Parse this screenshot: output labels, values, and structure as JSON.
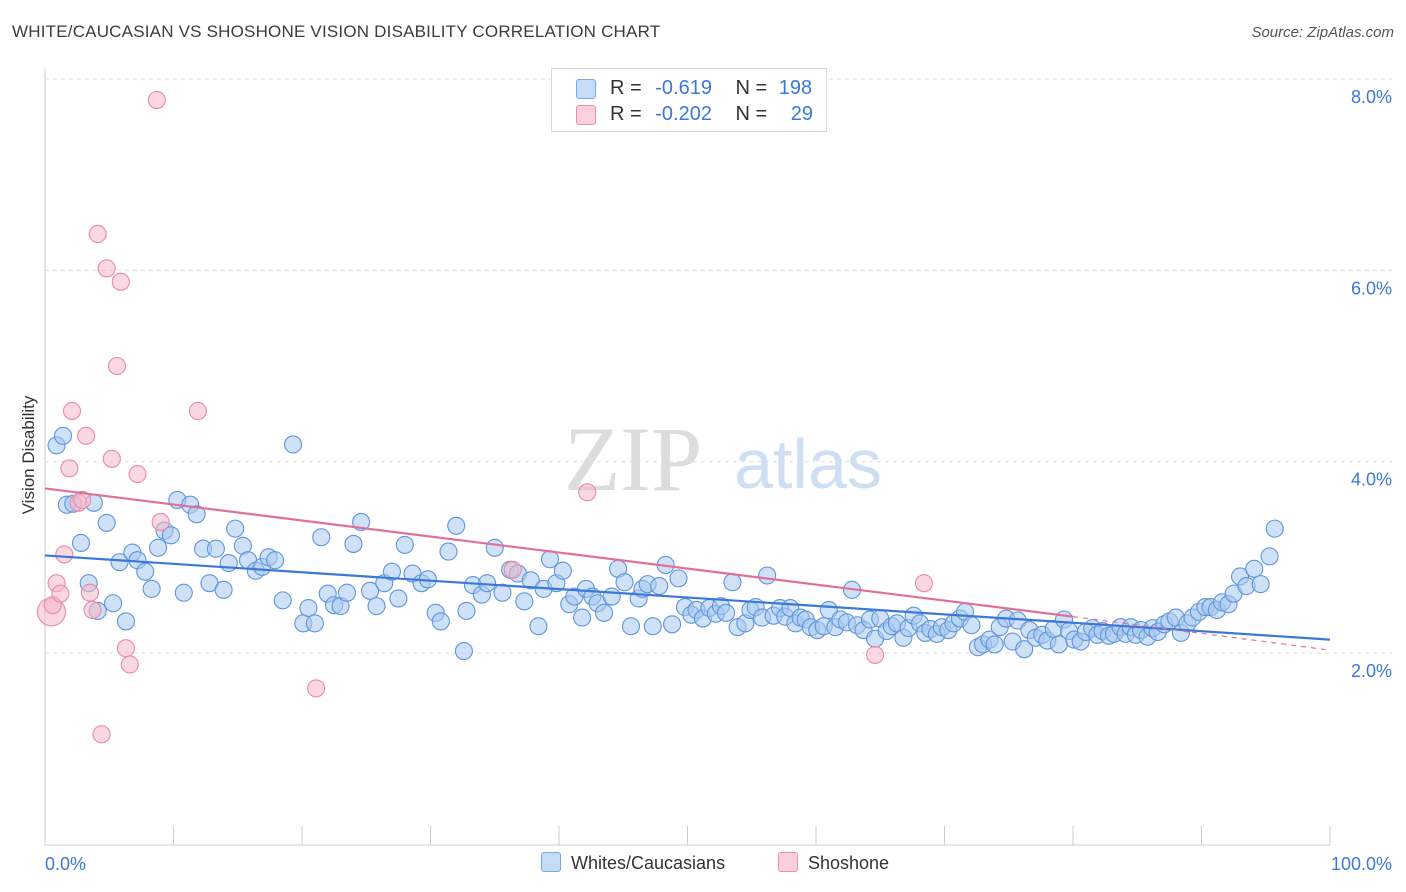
{
  "title": "WHITE/CAUCASIAN VS SHOSHONE VISION DISABILITY CORRELATION CHART",
  "source": "Source: ZipAtlas.com",
  "watermark": {
    "zip": "ZIP",
    "atlas": "atlas"
  },
  "legend_top": {
    "rows": [
      {
        "r_label": "R =",
        "r_value": "-0.619",
        "n_label": "N =",
        "n_value": "198",
        "color": "#a8c8f0"
      },
      {
        "r_label": "R =",
        "r_value": "-0.202",
        "n_label": "N =",
        "n_value": "29",
        "color": "#f5b8c8"
      }
    ]
  },
  "legend_bottom": [
    {
      "label": "Whites/Caucasians",
      "color": "#a8c8f0"
    },
    {
      "label": "Shoshone",
      "color": "#f5b8c8"
    }
  ],
  "chart_data": {
    "type": "scatter",
    "title": "WHITE/CAUCASIAN VS SHOSHONE VISION DISABILITY CORRELATION CHART",
    "xlabel": "",
    "ylabel": "Vision Disability",
    "xlim": [
      0,
      100
    ],
    "ylim": [
      0,
      8.2
    ],
    "x_tick_labels": [
      "0.0%",
      "100.0%"
    ],
    "y_ticks": [
      2,
      4,
      6,
      8
    ],
    "y_tick_labels": [
      "2.0%",
      "4.0%",
      "6.0%",
      "8.0%"
    ],
    "grid": true,
    "legend_position": "bottom",
    "colors": {
      "white": "#3b78d8",
      "white_fill": "#a8c8f0",
      "shoshone": "#e07098",
      "shoshone_fill": "#f5b8c8",
      "tick_label": "#3b78d8"
    },
    "series": [
      {
        "name": "Whites/Caucasians",
        "r": -0.619,
        "n": 198,
        "trend": {
          "x": [
            0,
            100
          ],
          "y": [
            3.02,
            2.14
          ]
        },
        "points": [
          [
            0.9,
            4.17
          ],
          [
            1.4,
            4.27
          ],
          [
            1.7,
            3.55
          ],
          [
            2.2,
            3.56
          ],
          [
            2.8,
            3.15
          ],
          [
            3.4,
            2.73
          ],
          [
            3.8,
            3.57
          ],
          [
            4.1,
            2.44
          ],
          [
            4.8,
            3.36
          ],
          [
            5.3,
            2.52
          ],
          [
            5.8,
            2.95
          ],
          [
            6.3,
            2.33
          ],
          [
            6.8,
            3.05
          ],
          [
            7.2,
            2.97
          ],
          [
            7.8,
            2.85
          ],
          [
            8.3,
            2.67
          ],
          [
            8.8,
            3.1
          ],
          [
            9.3,
            3.28
          ],
          [
            9.8,
            3.23
          ],
          [
            10.3,
            3.6
          ],
          [
            10.8,
            2.63
          ],
          [
            11.3,
            3.55
          ],
          [
            11.8,
            3.45
          ],
          [
            12.3,
            3.09
          ],
          [
            12.8,
            2.73
          ],
          [
            13.3,
            3.09
          ],
          [
            13.9,
            2.66
          ],
          [
            14.3,
            2.94
          ],
          [
            14.8,
            3.3
          ],
          [
            15.4,
            3.12
          ],
          [
            15.8,
            2.97
          ],
          [
            16.4,
            2.86
          ],
          [
            16.9,
            2.9
          ],
          [
            17.4,
            3.0
          ],
          [
            17.9,
            2.97
          ],
          [
            18.5,
            2.55
          ],
          [
            19.3,
            4.18
          ],
          [
            20.1,
            2.31
          ],
          [
            20.5,
            2.47
          ],
          [
            21.0,
            2.31
          ],
          [
            21.5,
            3.21
          ],
          [
            22.0,
            2.62
          ],
          [
            22.5,
            2.5
          ],
          [
            23.0,
            2.49
          ],
          [
            23.5,
            2.63
          ],
          [
            24.0,
            3.14
          ],
          [
            24.6,
            3.37
          ],
          [
            25.3,
            2.65
          ],
          [
            25.8,
            2.49
          ],
          [
            26.4,
            2.73
          ],
          [
            27.0,
            2.85
          ],
          [
            27.5,
            2.57
          ],
          [
            28.0,
            3.13
          ],
          [
            28.6,
            2.83
          ],
          [
            29.3,
            2.73
          ],
          [
            29.8,
            2.77
          ],
          [
            30.4,
            2.42
          ],
          [
            30.8,
            2.33
          ],
          [
            31.4,
            3.06
          ],
          [
            32.0,
            3.33
          ],
          [
            32.6,
            2.02
          ],
          [
            32.8,
            2.44
          ],
          [
            33.3,
            2.71
          ],
          [
            34.0,
            2.61
          ],
          [
            34.4,
            2.73
          ],
          [
            35.0,
            3.1
          ],
          [
            35.6,
            2.63
          ],
          [
            36.2,
            2.87
          ],
          [
            36.8,
            2.83
          ],
          [
            37.3,
            2.54
          ],
          [
            37.8,
            2.76
          ],
          [
            38.4,
            2.28
          ],
          [
            38.8,
            2.67
          ],
          [
            39.3,
            2.98
          ],
          [
            39.8,
            2.73
          ],
          [
            40.3,
            2.86
          ],
          [
            40.8,
            2.51
          ],
          [
            41.2,
            2.59
          ],
          [
            41.8,
            2.37
          ],
          [
            42.1,
            2.67
          ],
          [
            42.6,
            2.59
          ],
          [
            43.0,
            2.52
          ],
          [
            43.5,
            2.42
          ],
          [
            44.1,
            2.59
          ],
          [
            44.6,
            2.88
          ],
          [
            45.1,
            2.74
          ],
          [
            45.6,
            2.28
          ],
          [
            46.2,
            2.57
          ],
          [
            46.5,
            2.67
          ],
          [
            46.9,
            2.72
          ],
          [
            47.3,
            2.28
          ],
          [
            47.8,
            2.7
          ],
          [
            48.3,
            2.92
          ],
          [
            48.8,
            2.3
          ],
          [
            49.3,
            2.78
          ],
          [
            49.8,
            2.48
          ],
          [
            50.3,
            2.4
          ],
          [
            50.7,
            2.45
          ],
          [
            51.2,
            2.36
          ],
          [
            51.7,
            2.47
          ],
          [
            52.2,
            2.41
          ],
          [
            52.6,
            2.49
          ],
          [
            53.0,
            2.42
          ],
          [
            53.5,
            2.74
          ],
          [
            53.9,
            2.27
          ],
          [
            54.5,
            2.31
          ],
          [
            54.9,
            2.45
          ],
          [
            55.3,
            2.48
          ],
          [
            55.8,
            2.37
          ],
          [
            56.2,
            2.81
          ],
          [
            56.7,
            2.39
          ],
          [
            57.2,
            2.47
          ],
          [
            57.6,
            2.38
          ],
          [
            58.0,
            2.47
          ],
          [
            58.4,
            2.31
          ],
          [
            58.8,
            2.37
          ],
          [
            59.2,
            2.35
          ],
          [
            59.6,
            2.27
          ],
          [
            60.1,
            2.24
          ],
          [
            60.6,
            2.28
          ],
          [
            61.0,
            2.45
          ],
          [
            61.5,
            2.27
          ],
          [
            61.9,
            2.35
          ],
          [
            62.4,
            2.32
          ],
          [
            62.8,
            2.66
          ],
          [
            63.2,
            2.29
          ],
          [
            63.7,
            2.24
          ],
          [
            64.2,
            2.35
          ],
          [
            64.6,
            2.15
          ],
          [
            65.0,
            2.36
          ],
          [
            65.5,
            2.23
          ],
          [
            65.9,
            2.28
          ],
          [
            66.3,
            2.31
          ],
          [
            66.8,
            2.16
          ],
          [
            67.2,
            2.26
          ],
          [
            67.6,
            2.39
          ],
          [
            68.1,
            2.31
          ],
          [
            68.5,
            2.21
          ],
          [
            68.9,
            2.25
          ],
          [
            69.4,
            2.2
          ],
          [
            69.8,
            2.27
          ],
          [
            70.3,
            2.24
          ],
          [
            70.7,
            2.31
          ],
          [
            71.2,
            2.36
          ],
          [
            71.6,
            2.43
          ],
          [
            72.1,
            2.29
          ],
          [
            72.6,
            2.06
          ],
          [
            73.0,
            2.09
          ],
          [
            73.5,
            2.14
          ],
          [
            73.9,
            2.09
          ],
          [
            74.3,
            2.27
          ],
          [
            74.8,
            2.36
          ],
          [
            75.3,
            2.12
          ],
          [
            75.7,
            2.34
          ],
          [
            76.2,
            2.04
          ],
          [
            76.6,
            2.24
          ],
          [
            77.1,
            2.16
          ],
          [
            77.6,
            2.19
          ],
          [
            78.0,
            2.13
          ],
          [
            78.5,
            2.25
          ],
          [
            78.9,
            2.09
          ],
          [
            79.3,
            2.35
          ],
          [
            79.7,
            2.23
          ],
          [
            80.1,
            2.14
          ],
          [
            80.6,
            2.12
          ],
          [
            81.0,
            2.22
          ],
          [
            81.5,
            2.26
          ],
          [
            81.9,
            2.19
          ],
          [
            82.3,
            2.23
          ],
          [
            82.8,
            2.18
          ],
          [
            83.2,
            2.2
          ],
          [
            83.7,
            2.27
          ],
          [
            84.1,
            2.2
          ],
          [
            84.5,
            2.27
          ],
          [
            84.9,
            2.19
          ],
          [
            85.3,
            2.24
          ],
          [
            85.8,
            2.17
          ],
          [
            86.2,
            2.26
          ],
          [
            86.6,
            2.22
          ],
          [
            87.1,
            2.3
          ],
          [
            87.5,
            2.33
          ],
          [
            88.0,
            2.37
          ],
          [
            88.4,
            2.21
          ],
          [
            88.9,
            2.31
          ],
          [
            89.3,
            2.37
          ],
          [
            89.8,
            2.43
          ],
          [
            90.3,
            2.48
          ],
          [
            90.7,
            2.48
          ],
          [
            91.2,
            2.45
          ],
          [
            91.6,
            2.53
          ],
          [
            92.1,
            2.51
          ],
          [
            92.5,
            2.62
          ],
          [
            93.0,
            2.8
          ],
          [
            93.5,
            2.7
          ],
          [
            94.1,
            2.88
          ],
          [
            94.6,
            2.72
          ],
          [
            95.3,
            3.01
          ],
          [
            95.7,
            3.3
          ]
        ]
      },
      {
        "name": "Shoshone",
        "r": -0.202,
        "n": 29,
        "trend": {
          "x": [
            0,
            80
          ],
          "y": [
            3.72,
            2.38
          ]
        },
        "trend_dashed": {
          "x": [
            80,
            100
          ],
          "y": [
            2.38,
            2.03
          ]
        },
        "points": [
          [
            0.5,
            2.43
          ],
          [
            0.6,
            2.5
          ],
          [
            0.9,
            2.73
          ],
          [
            1.2,
            2.62
          ],
          [
            1.5,
            3.03
          ],
          [
            1.9,
            3.93
          ],
          [
            2.1,
            4.53
          ],
          [
            2.6,
            3.57
          ],
          [
            2.9,
            3.6
          ],
          [
            3.2,
            4.27
          ],
          [
            3.5,
            2.63
          ],
          [
            3.7,
            2.45
          ],
          [
            4.1,
            6.38
          ],
          [
            4.4,
            1.15
          ],
          [
            4.8,
            6.02
          ],
          [
            5.2,
            4.03
          ],
          [
            5.6,
            5.0
          ],
          [
            5.9,
            5.88
          ],
          [
            6.3,
            2.05
          ],
          [
            6.6,
            1.88
          ],
          [
            7.2,
            3.87
          ],
          [
            8.7,
            7.78
          ],
          [
            9.0,
            3.37
          ],
          [
            11.9,
            4.53
          ],
          [
            21.1,
            1.63
          ],
          [
            36.4,
            2.87
          ],
          [
            42.2,
            3.68
          ],
          [
            64.6,
            1.98
          ],
          [
            68.4,
            2.73
          ]
        ]
      }
    ]
  }
}
